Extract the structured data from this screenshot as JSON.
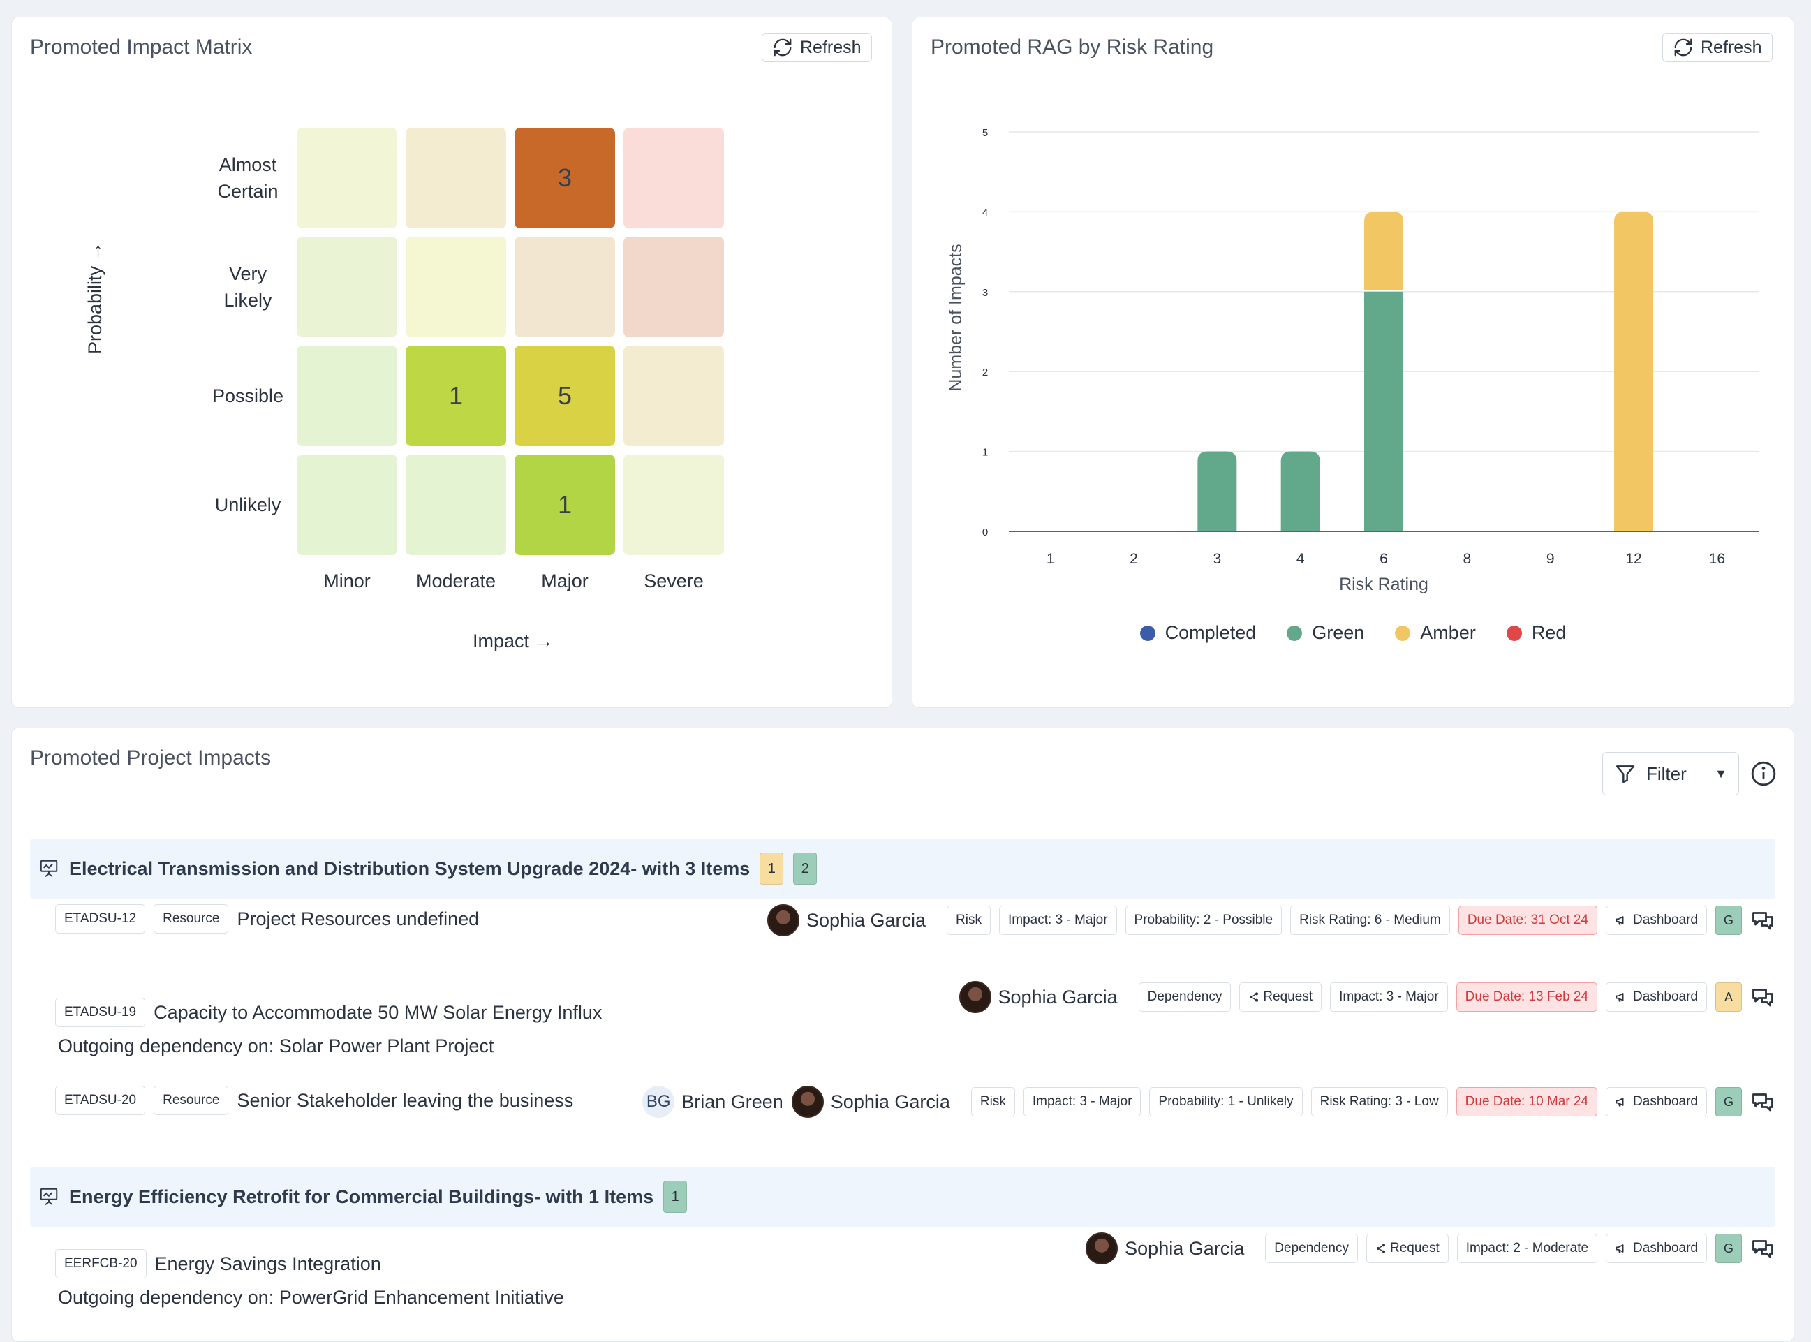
{
  "matrix": {
    "title": "Promoted Impact Matrix",
    "refresh_label": "Refresh",
    "y_axis_title": "Probability →",
    "x_axis_title": "Impact →",
    "rows": [
      "Almost Certain",
      "Very Likely",
      "Possible",
      "Unlikely"
    ],
    "cols": [
      "Minor",
      "Moderate",
      "Major",
      "Severe"
    ],
    "cells": [
      [
        {
          "v": "",
          "color": "#f3f6d6"
        },
        {
          "v": "",
          "color": "#f3ecd0"
        },
        {
          "v": "3",
          "color": "#c8692a"
        },
        {
          "v": "",
          "color": "#fadcd9"
        }
      ],
      [
        {
          "v": "",
          "color": "#eaf4d4"
        },
        {
          "v": "",
          "color": "#f5f6d2"
        },
        {
          "v": "",
          "color": "#f3e6d0"
        },
        {
          "v": "",
          "color": "#f2d8cb"
        }
      ],
      [
        {
          "v": "",
          "color": "#e4f4d3"
        },
        {
          "v": "1",
          "color": "#bdd745"
        },
        {
          "v": "5",
          "color": "#d8d244"
        },
        {
          "v": "",
          "color": "#f3ecd0"
        }
      ],
      [
        {
          "v": "",
          "color": "#e4f4d3"
        },
        {
          "v": "",
          "color": "#e4f4d3"
        },
        {
          "v": "1",
          "color": "#b2d545"
        },
        {
          "v": "",
          "color": "#eff5d6"
        }
      ]
    ]
  },
  "rag": {
    "title": "Promoted RAG by Risk Rating",
    "refresh_label": "Refresh",
    "legend": [
      {
        "label": "Completed",
        "color": "#3b5ca8"
      },
      {
        "label": "Green",
        "color": "#62a88a"
      },
      {
        "label": "Amber",
        "color": "#f2c663"
      },
      {
        "label": "Red",
        "color": "#e04848"
      }
    ]
  },
  "chart_data": {
    "type": "bar",
    "stacked": true,
    "categories": [
      "1",
      "2",
      "3",
      "4",
      "6",
      "8",
      "9",
      "12",
      "16"
    ],
    "series": [
      {
        "name": "Completed",
        "values": [
          0,
          0,
          0,
          0,
          0,
          0,
          0,
          0,
          0
        ]
      },
      {
        "name": "Green",
        "values": [
          0,
          0,
          1,
          1,
          3,
          0,
          0,
          0,
          0
        ]
      },
      {
        "name": "Amber",
        "values": [
          0,
          0,
          0,
          0,
          1,
          0,
          0,
          4,
          0
        ]
      },
      {
        "name": "Red",
        "values": [
          0,
          0,
          0,
          0,
          0,
          0,
          0,
          0,
          0
        ]
      }
    ],
    "xlabel": "Risk Rating",
    "ylabel": "Number of Impacts",
    "ylim": [
      0,
      5
    ],
    "yticks": [
      "0",
      "1",
      "2",
      "3",
      "4",
      "5"
    ],
    "grid": true,
    "legend_position": "bottom"
  },
  "impacts": {
    "title": "Promoted Project Impacts",
    "filter_label": "Filter",
    "groups": [
      {
        "title": "Electrical Transmission and Distribution System Upgrade 2024- with 3 Items",
        "badges": [
          {
            "v": "1",
            "color": "#f7dda0"
          },
          {
            "v": "2",
            "color": "#9ccdb8"
          }
        ],
        "items": [
          {
            "id": "ETADSU-12",
            "category": "Resource",
            "title": "Project Resources undefined",
            "sub": "",
            "people": [
              {
                "name": "Sophia Garcia",
                "initials": ""
              }
            ],
            "tags": [
              "Risk",
              "Impact: 3 - Major",
              "Probability: 2 - Possible",
              "Risk Rating: 6 - Medium"
            ],
            "due": "Due Date: 31 Oct 24",
            "dashboard": "Dashboard",
            "status": "G",
            "status_color": "#9ccdb8"
          },
          {
            "id": "ETADSU-19",
            "category": "",
            "title": "Capacity to Accommodate 50 MW Solar Energy Influx",
            "sub": "Outgoing dependency on: Solar Power Plant Project",
            "people": [
              {
                "name": "Sophia Garcia",
                "initials": ""
              }
            ],
            "tags": [
              "Dependency",
              "Request",
              "Impact: 3 - Major"
            ],
            "due": "Due Date: 13 Feb 24",
            "dashboard": "Dashboard",
            "status": "A",
            "status_color": "#f7dda0"
          },
          {
            "id": "ETADSU-20",
            "category": "Resource",
            "title": "Senior Stakeholder leaving the business",
            "sub": "",
            "people": [
              {
                "name": "Brian Green",
                "initials": "BG"
              },
              {
                "name": "Sophia Garcia",
                "initials": ""
              }
            ],
            "tags": [
              "Risk",
              "Impact: 3 - Major",
              "Probability: 1 - Unlikely",
              "Risk Rating: 3 - Low"
            ],
            "due": "Due Date: 10 Mar 24",
            "dashboard": "Dashboard",
            "status": "G",
            "status_color": "#9ccdb8"
          }
        ]
      },
      {
        "title": "Energy Efficiency Retrofit for Commercial Buildings- with 1 Items",
        "badges": [
          {
            "v": "1",
            "color": "#9ccdb8"
          }
        ],
        "items": [
          {
            "id": "EERFCB-20",
            "category": "",
            "title": "Energy Savings Integration",
            "sub": "Outgoing dependency on: PowerGrid Enhancement Initiative",
            "people": [
              {
                "name": "Sophia Garcia",
                "initials": ""
              }
            ],
            "tags": [
              "Dependency",
              "Request",
              "Impact: 2 - Moderate"
            ],
            "due": "",
            "dashboard": "Dashboard",
            "status": "G",
            "status_color": "#9ccdb8"
          }
        ]
      }
    ]
  }
}
